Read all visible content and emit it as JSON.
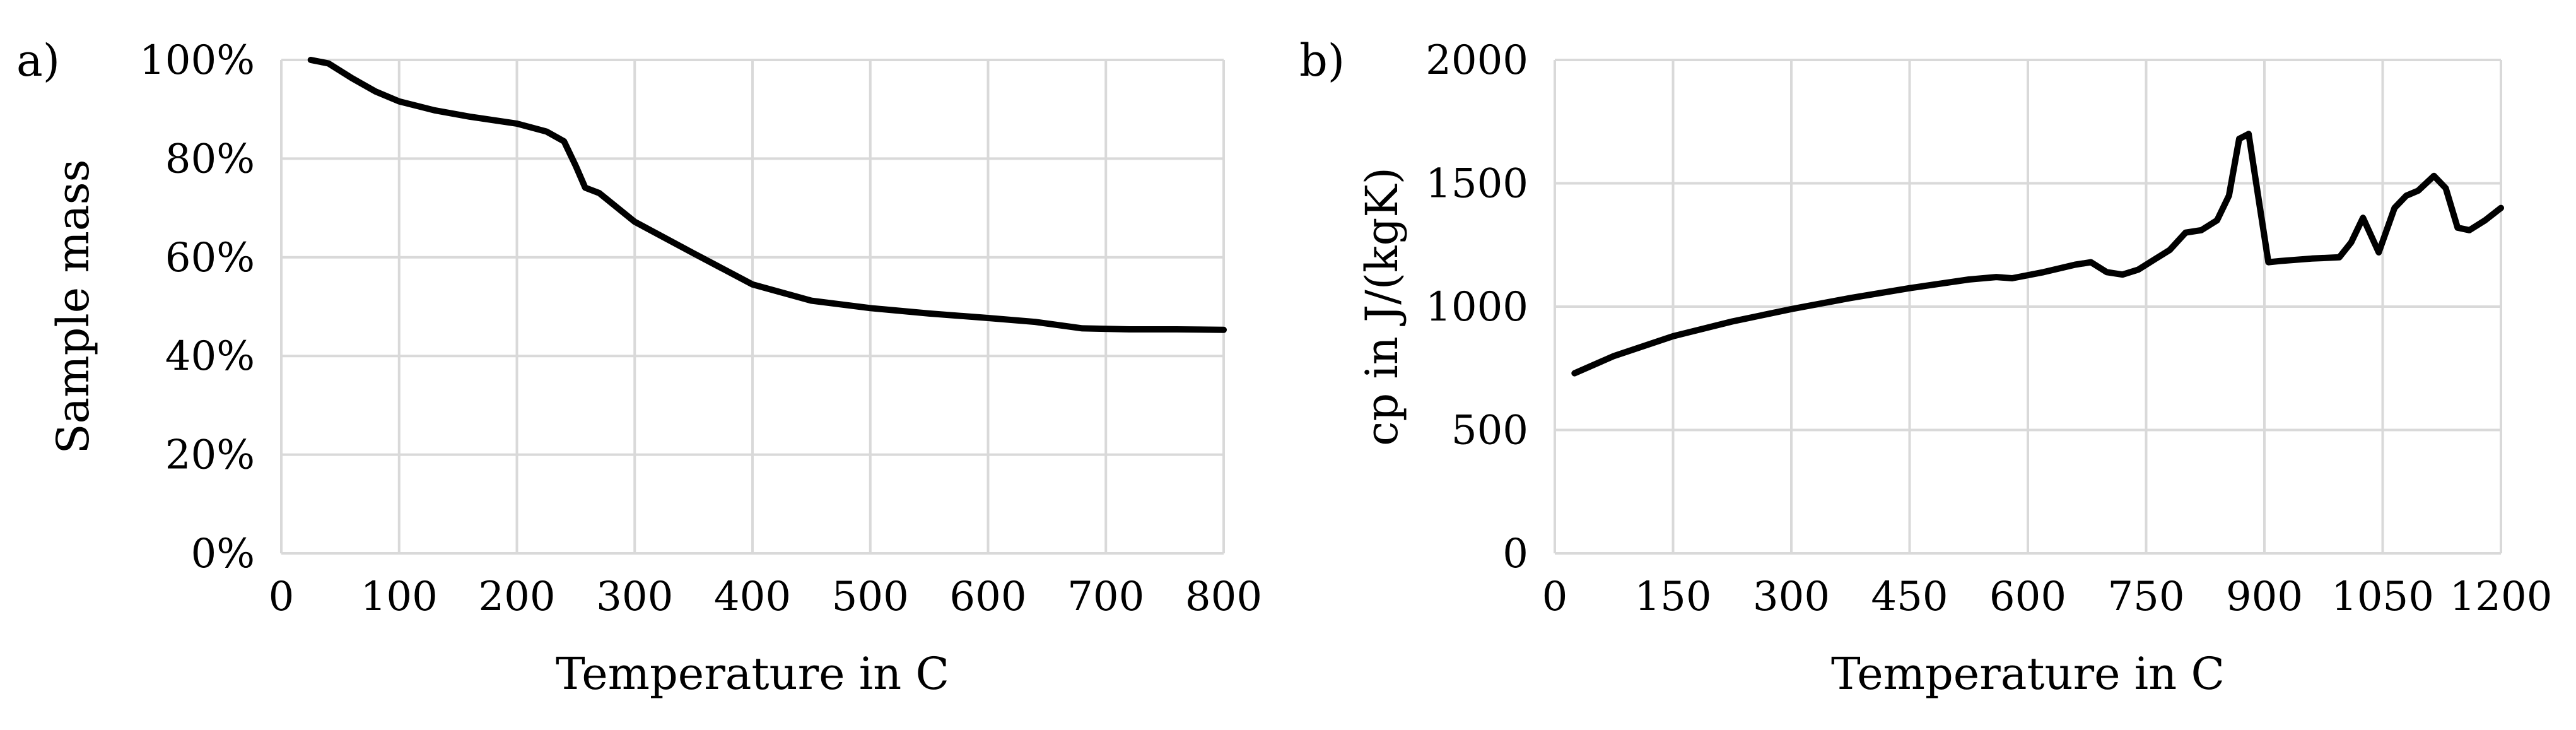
{
  "chart_data": [
    {
      "type": "line",
      "panel_label": "a)",
      "xlabel": "Temperature in C",
      "ylabel": "Sample mass",
      "xlim": [
        0,
        800
      ],
      "ylim": [
        0,
        100
      ],
      "grid": true,
      "x_ticks": [
        "0",
        "100",
        "200",
        "300",
        "400",
        "500",
        "600",
        "700",
        "800"
      ],
      "y_ticks": [
        "0%",
        "20%",
        "40%",
        "60%",
        "80%",
        "100%"
      ],
      "series": [
        {
          "color": "#000000",
          "x": [
            25,
            40,
            60,
            80,
            100,
            130,
            160,
            200,
            225,
            240,
            250,
            258,
            270,
            300,
            350,
            400,
            450,
            500,
            550,
            600,
            640,
            680,
            720,
            760,
            800
          ],
          "y": [
            100,
            99.3,
            96.3,
            93.6,
            91.6,
            89.8,
            88.5,
            87.1,
            85.5,
            83.5,
            78.5,
            74.1,
            73,
            67.2,
            60.8,
            54.5,
            51.2,
            49.7,
            48.6,
            47.7,
            46.9,
            45.6,
            45.4,
            45.4,
            45.3
          ]
        }
      ]
    },
    {
      "type": "line",
      "panel_label": "b)",
      "xlabel": "Temperature in C",
      "ylabel": "cp in J/(kgK)",
      "xlim": [
        0,
        1200
      ],
      "ylim": [
        0,
        2000
      ],
      "grid": true,
      "x_ticks": [
        "0",
        "150",
        "300",
        "450",
        "600",
        "750",
        "900",
        "1050",
        "1200"
      ],
      "y_ticks": [
        "0",
        "500",
        "1000",
        "1500",
        "2000"
      ],
      "series": [
        {
          "color": "#000000",
          "x": [
            25,
            75,
            150,
            225,
            300,
            375,
            450,
            525,
            560,
            580,
            620,
            660,
            680,
            700,
            720,
            740,
            760,
            780,
            800,
            820,
            840,
            855,
            868,
            880,
            892,
            905,
            920,
            960,
            995,
            1010,
            1025,
            1045,
            1065,
            1080,
            1095,
            1115,
            1130,
            1145,
            1160,
            1180,
            1200
          ],
          "y": [
            730,
            800,
            880,
            940,
            990,
            1035,
            1075,
            1110,
            1120,
            1115,
            1140,
            1170,
            1180,
            1140,
            1130,
            1150,
            1190,
            1230,
            1300,
            1310,
            1350,
            1450,
            1680,
            1700,
            1450,
            1180,
            1185,
            1195,
            1200,
            1260,
            1360,
            1220,
            1400,
            1450,
            1470,
            1530,
            1480,
            1320,
            1310,
            1350,
            1400
          ]
        }
      ]
    }
  ]
}
